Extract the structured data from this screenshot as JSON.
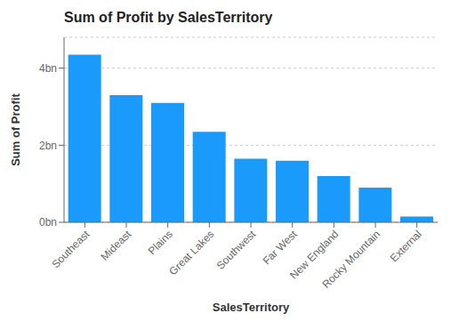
{
  "chart_data": {
    "type": "bar",
    "title": "Sum of Profit by SalesTerritory",
    "xlabel": "SalesTerritory",
    "ylabel": "Sum of Profit",
    "categories": [
      "Southeast",
      "Mideast",
      "Plains",
      "Great Lakes",
      "Southwest",
      "Far West",
      "New England",
      "Rocky Mountain",
      "External"
    ],
    "values": [
      4350000000,
      3300000000,
      3100000000,
      2350000000,
      1650000000,
      1600000000,
      1200000000,
      900000000,
      150000000
    ],
    "color": "#1a9bfc",
    "ylim": [
      0,
      4800000000
    ],
    "yticks": [
      {
        "value": 0,
        "label": "0bn"
      },
      {
        "value": 2000000000,
        "label": "2bn"
      },
      {
        "value": 4000000000,
        "label": "4bn"
      }
    ],
    "grid": true
  }
}
